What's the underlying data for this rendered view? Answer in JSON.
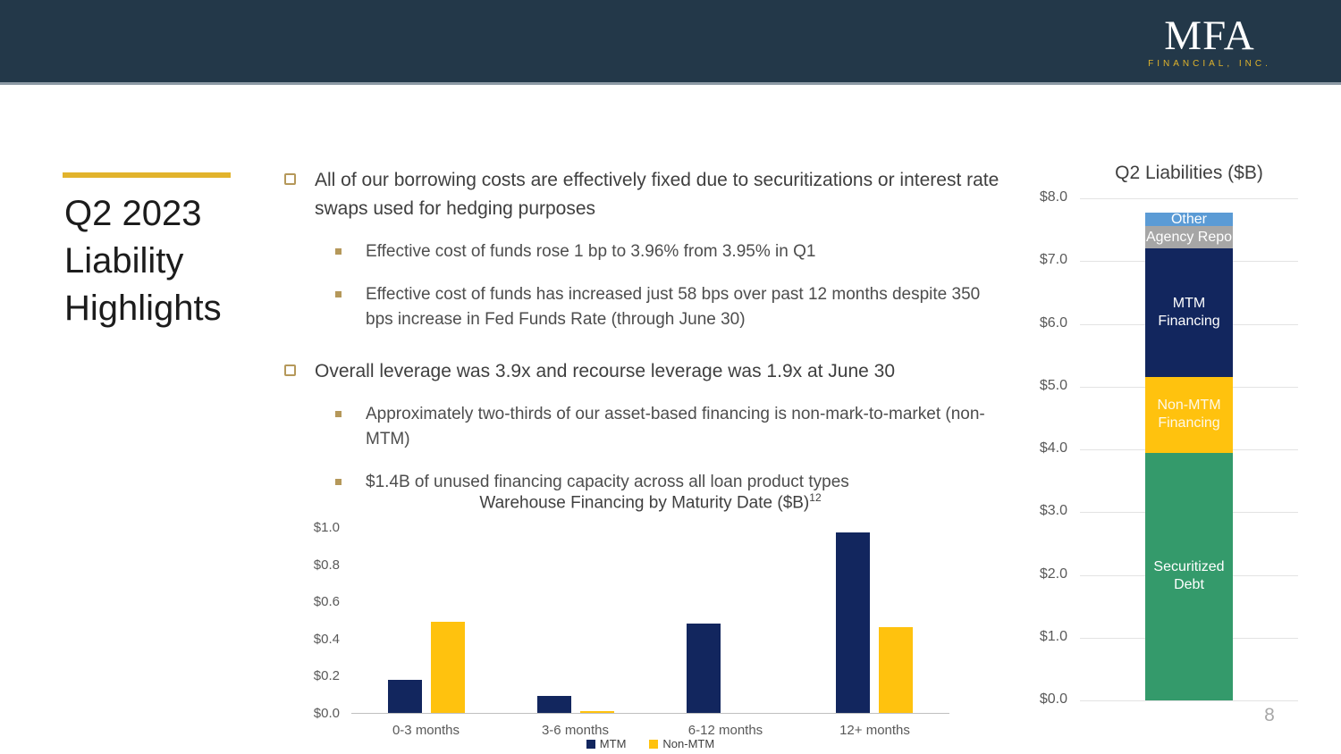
{
  "banner": {
    "logo_text": "MFA",
    "logo_subtext": "FINANCIAL, INC."
  },
  "title": "Q2 2023 Liability Highlights",
  "bullets": [
    {
      "text": "All of our borrowing costs are effectively fixed due to securitizations or interest rate swaps used for hedging purposes",
      "subs": [
        "Effective cost of funds rose 1 bp to 3.96% from 3.95% in Q1",
        "Effective cost of funds has increased just 58 bps over past 12 months despite 350 bps increase in Fed Funds Rate (through June 30)"
      ]
    },
    {
      "text": "Overall leverage was 3.9x and recourse leverage was 1.9x at June 30",
      "subs": [
        "Approximately two-thirds of our asset-based financing is non-mark-to-market (non-MTM)",
        "$1.4B of unused financing capacity across all loan product types"
      ]
    }
  ],
  "chart_data": [
    {
      "type": "bar",
      "title": "Warehouse Financing by Maturity Date ($B)",
      "title_superscript": "12",
      "categories": [
        "0-3 months",
        "3-6 months",
        "6-12 months",
        "12+ months"
      ],
      "series": [
        {
          "name": "MTM",
          "color": "#12265E",
          "values": [
            0.18,
            0.09,
            0.48,
            0.97
          ]
        },
        {
          "name": "Non-MTM",
          "color": "#FFC20E",
          "values": [
            0.49,
            0.01,
            0.0,
            0.46
          ]
        }
      ],
      "ylim": [
        0,
        1.0
      ],
      "yticks": [
        "$0.0",
        "$0.2",
        "$0.4",
        "$0.6",
        "$0.8",
        "$1.0"
      ],
      "grid": false,
      "legend_position": "bottom"
    },
    {
      "type": "bar",
      "stacked": true,
      "title": "Q2 Liabilities ($B)",
      "segments": [
        {
          "name": "Securitized Debt",
          "value": 3.95,
          "color": "#349A6B",
          "label_color": "#FFFFFF"
        },
        {
          "name": "Non-MTM Financing",
          "value": 1.2,
          "color": "#FFC20E",
          "label_color": "#FDF8EA"
        },
        {
          "name": "MTM Financing",
          "value": 2.05,
          "color": "#12265E",
          "label_color": "#FFFFFF"
        },
        {
          "name": "Agency Repo",
          "value": 0.36,
          "color": "#A6A6A6",
          "label_color": "#FFFFFF"
        },
        {
          "name": "Other",
          "value": 0.21,
          "color": "#5B9BD5",
          "label_color": "#FFFFFF"
        }
      ],
      "ylim": [
        0,
        8.0
      ],
      "yticks": [
        "$0.0",
        "$1.0",
        "$2.0",
        "$3.0",
        "$4.0",
        "$5.0",
        "$6.0",
        "$7.0",
        "$8.0"
      ],
      "grid": true,
      "legend_position": "none"
    }
  ],
  "colors": {
    "banner_navy": "#233849",
    "accent_gold": "#E2B32C",
    "bar_navy": "#12265E",
    "bar_gold": "#FFC20E",
    "bar_green": "#349A6B",
    "bar_light_blue": "#5B9BD5",
    "bar_gray": "#A6A6A6",
    "bullet_tan": "#B5985A"
  },
  "page_number": "8"
}
